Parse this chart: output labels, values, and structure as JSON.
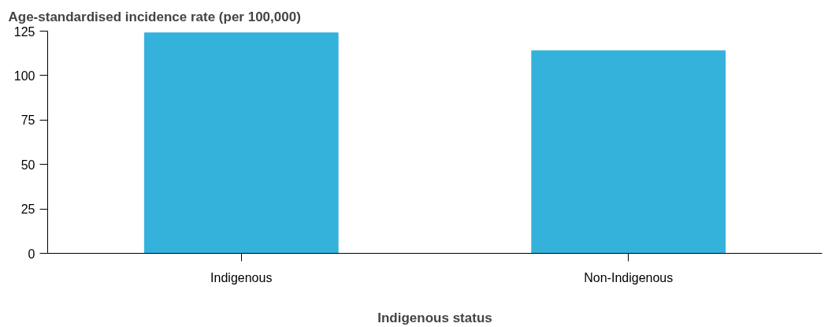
{
  "chart_data": {
    "type": "bar",
    "title": "Age-standardised incidence rate (per 100,000)",
    "xlabel": "Indigenous status",
    "categories": [
      "Indigenous",
      "Non-Indigenous"
    ],
    "series": [
      {
        "color": "#35b2dc",
        "values": [
          124,
          114
        ]
      }
    ],
    "ylim": [
      0,
      125
    ],
    "yticks": [
      0,
      25,
      50,
      75,
      100,
      125
    ],
    "grid": false
  }
}
